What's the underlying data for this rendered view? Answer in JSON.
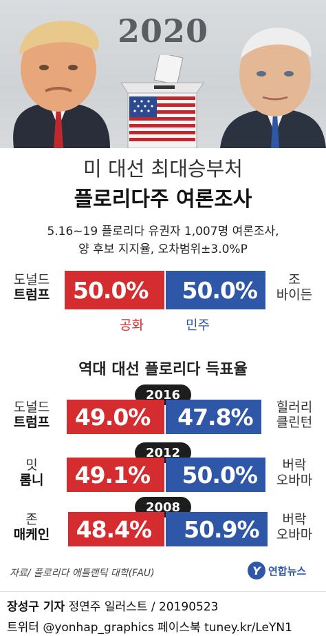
{
  "header": {
    "year_text": "2020",
    "title_line1": "미 대선 최대승부처",
    "title_line2": "플로리다주 여론조사",
    "note_line1": "5.16~19 플로리다 유권자 1,007명 여론조사,",
    "note_line2": "양 후보 지지율, 오차범위±3.0%P"
  },
  "poll": {
    "left_name_top": "도널드",
    "left_name_bottom": "트럼프",
    "right_name_top": "조",
    "right_name_bottom": "바이든",
    "left_label": "50.0%",
    "right_label": "50.0%",
    "left_party": "공화",
    "right_party": "민주"
  },
  "history_title": "역대 대선 플로리다 득표율",
  "history": [
    {
      "year": "2016",
      "left_top": "도널드",
      "left_bottom": "트럼프",
      "right_top": "힐러리",
      "right_bottom": "클린턴",
      "left_label": "49.0%",
      "right_label": "47.8%"
    },
    {
      "year": "2012",
      "left_top": "밋",
      "left_bottom": "롬니",
      "right_top": "버락",
      "right_bottom": "오바마",
      "left_label": "49.1%",
      "right_label": "50.0%"
    },
    {
      "year": "2008",
      "left_top": "존",
      "left_bottom": "매케인",
      "right_top": "버락",
      "right_bottom": "오바마",
      "left_label": "48.4%",
      "right_label": "50.9%"
    }
  ],
  "chart_data": {
    "type": "bar",
    "title": "플로리다주 여론조사",
    "orientation": "horizontal-diverging",
    "groups": [
      {
        "label": "2020 여론조사",
        "left": {
          "name": "도널드 트럼프",
          "party": "공화",
          "value": 50.0
        },
        "right": {
          "name": "조 바이든",
          "party": "민주",
          "value": 50.0
        }
      },
      {
        "label": "2016",
        "left": {
          "name": "도널드 트럼프",
          "value": 49.0
        },
        "right": {
          "name": "힐러리 클린턴",
          "value": 47.8
        }
      },
      {
        "label": "2012",
        "left": {
          "name": "밋 롬니",
          "value": 49.1
        },
        "right": {
          "name": "버락 오바마",
          "value": 50.0
        }
      },
      {
        "label": "2008",
        "left": {
          "name": "존 매케인",
          "value": 48.4
        },
        "right": {
          "name": "버락 오바마",
          "value": 50.9
        }
      }
    ],
    "colors": {
      "republican": "#d42c2f",
      "democrat": "#2e57a8"
    }
  },
  "source": "자료/ 플로리다 애틀랜틱 대학(FAU)",
  "logo": {
    "mark": "Y",
    "text": "연합뉴스"
  },
  "credit": {
    "reporter": "장성구 기자",
    "rest": "  정연주 일러스트  / 20190523"
  },
  "social": "트위터 @yonhap_graphics  페이스북 tuney.kr/LeYN1"
}
